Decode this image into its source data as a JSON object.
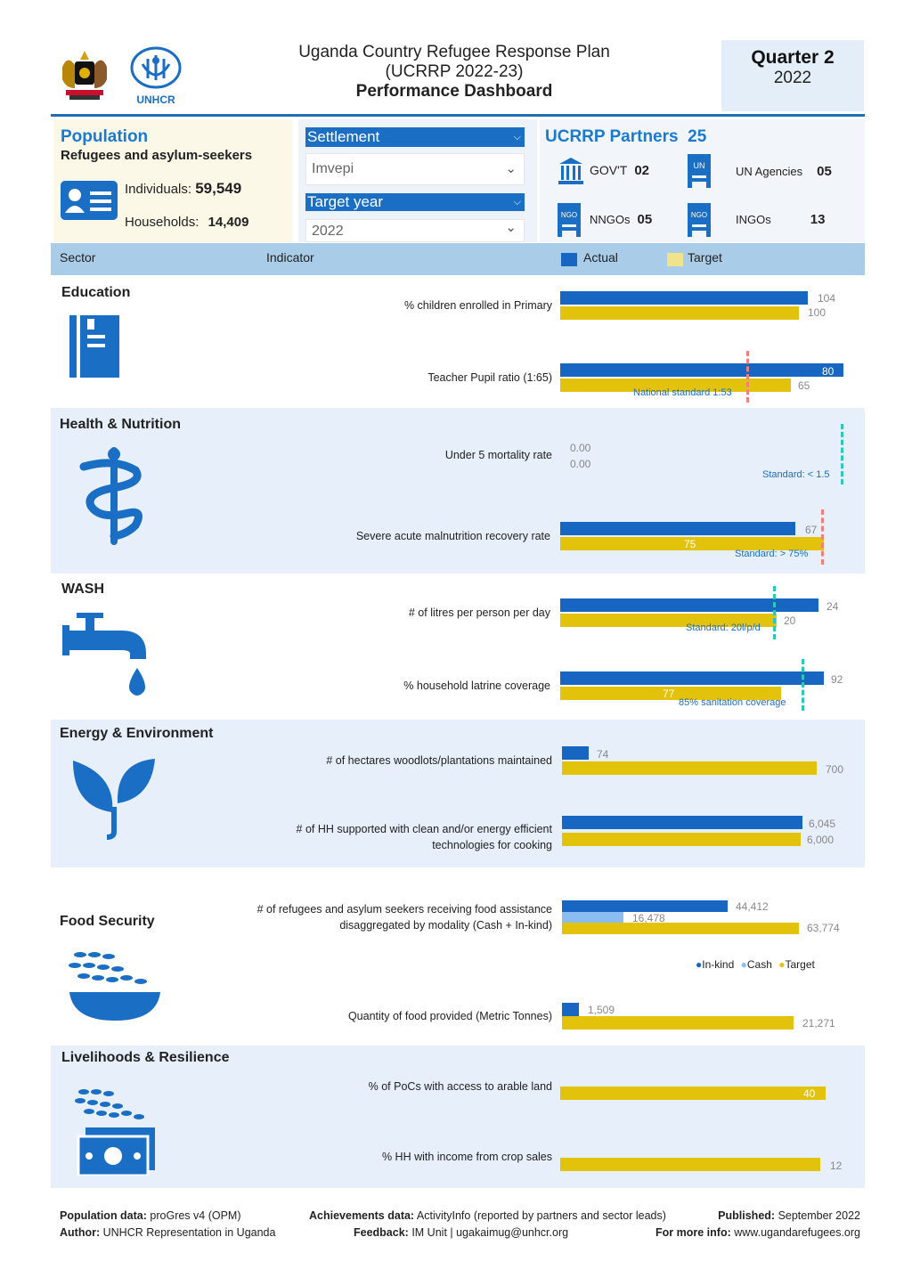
{
  "header": {
    "logo_uganda": "uganda-coat-of-arms-icon",
    "logo_unhcr_text": "UNHCR",
    "title_line1": "Uganda Country Refugee Response Plan",
    "title_line2": "(UCRRP 2022-23)",
    "title_line3": "Performance Dashboard",
    "quarter": "Quarter 2",
    "year": "2022"
  },
  "population": {
    "title": "Population",
    "subtitle": "Refugees and asylum-seekers",
    "individuals_label": "Individuals:",
    "individuals_value": "59,549",
    "households_label": "Households:",
    "households_value": "14,409"
  },
  "filters": {
    "settlement_label": "Settlement",
    "settlement_value": "Imvepi",
    "target_year_label": "Target year",
    "target_year_value": "2022"
  },
  "partners": {
    "title": "UCRRP Partners",
    "total": "25",
    "govt_label": "GOV'T",
    "govt_value": "02",
    "un_label": "UN Agencies",
    "un_value": "05",
    "nngo_label": "NNGOs",
    "nngo_value": "05",
    "ingo_label": "INGOs",
    "ingo_value": "13",
    "un_badge": "UN",
    "nngo_badge": "NGO",
    "ingo_badge": "NGO"
  },
  "columns": {
    "sector": "Sector",
    "indicator": "Indicator",
    "actual": "Actual",
    "target": "Target"
  },
  "colors": {
    "actual": "#1766c2",
    "target": "#e3c20c",
    "cash": "#8bbcf2",
    "band": "#e6effa",
    "accent": "#1a7ad0"
  },
  "sectors": {
    "education": {
      "name": "Education",
      "icon": "book-icon"
    },
    "health": {
      "name": "Health & Nutrition",
      "icon": "caduceus-icon"
    },
    "wash": {
      "name": "WASH",
      "icon": "water-tap-icon"
    },
    "energy": {
      "name": "Energy & Environment",
      "icon": "seedling-icon"
    },
    "food": {
      "name": "Food Security",
      "icon": "grain-bowl-icon"
    },
    "livelihoods": {
      "name": "Livelihoods & Resilience",
      "icon": "grain-money-icon"
    }
  },
  "indicators": {
    "edu1": {
      "label": "% children enrolled in Primary",
      "actual": 104,
      "target": 100,
      "actual_label": "104",
      "target_label": "100"
    },
    "edu2": {
      "label": "Teacher Pupil ratio (1:65)",
      "actual": 80,
      "target": 65,
      "actual_label": "80",
      "target_label": "65",
      "standard_label": "National standard 1:53",
      "standard_value": 53
    },
    "hn1": {
      "label": "Under 5 mortality rate",
      "actual": 0,
      "target": 0,
      "actual_label": "0.00",
      "target_label": "0.00",
      "standard_label": "Standard: < 1.5"
    },
    "hn2": {
      "label": "Severe acute malnutrition recovery rate",
      "actual": 67,
      "target": 75,
      "actual_label": "67",
      "target_label": "75",
      "standard_label": "Standard: > 75%"
    },
    "wash1": {
      "label": "# of litres per person per day",
      "actual": 24,
      "target": 20,
      "actual_label": "24",
      "target_label": "20",
      "standard_label": "Standard: 20l/p/d"
    },
    "wash2": {
      "label": "% household latrine coverage",
      "actual": 92,
      "target": 77,
      "actual_label": "92",
      "target_label": "77",
      "standard_label": "85% sanitation coverage"
    },
    "en1": {
      "label": "# of hectares woodlots/plantations maintained",
      "actual": 74,
      "target": 700,
      "actual_label": "74",
      "target_label": "700"
    },
    "en2": {
      "label_line1": "# of HH supported with clean and/or energy efficient",
      "label_line2": "technologies for cooking",
      "actual": 6045,
      "target": 6000,
      "actual_label": "6,045",
      "target_label": "6,000"
    },
    "fs1": {
      "label_line1": "# of refugees and asylum seekers receiving food assistance",
      "label_line2": "disaggregated by modality (Cash + In-kind)",
      "inkind": 44412,
      "cash": 16478,
      "target": 63774,
      "inkind_label": "44,412",
      "cash_label": "16,478",
      "target_label": "63,774"
    },
    "fs_legend": {
      "inkind": "In-kind",
      "cash": "Cash",
      "target": "Target"
    },
    "fs2": {
      "label": "Quantity of food provided (Metric Tonnes)",
      "actual": 1509,
      "target": 21271,
      "actual_label": "1,509",
      "target_label": "21,271"
    },
    "lr1": {
      "label": "% of PoCs with access to arable land",
      "target": 40,
      "target_label": "40"
    },
    "lr2": {
      "label": "% HH with income from crop sales",
      "target": 12,
      "target_label": "12"
    }
  },
  "footer": {
    "pop_data_label": "Population data:",
    "pop_data_value": "proGres v4 (OPM)",
    "author_label": "Author:",
    "author_value": "UNHCR Representation in Uganda",
    "achievements_label": "Achievements data:",
    "achievements_value": "ActivityInfo (reported by partners and sector leads)",
    "feedback_label": "Feedback:",
    "feedback_value": "IM Unit | ugakaimug@unhcr.org",
    "published_label": "Published:",
    "published_value": "September 2022",
    "more_info_label": "For more info:",
    "more_info_value": "www.ugandarefugees.org"
  }
}
